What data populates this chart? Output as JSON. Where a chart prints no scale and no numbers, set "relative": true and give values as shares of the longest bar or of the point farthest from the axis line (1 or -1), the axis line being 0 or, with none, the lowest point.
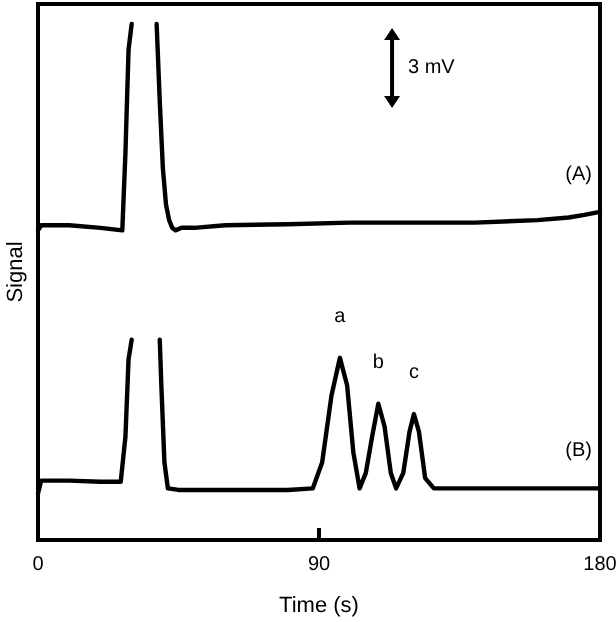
{
  "chart_data": {
    "type": "line",
    "relative": true,
    "xlabel": "Time (s)",
    "ylabel": "Signal",
    "xlim": [
      0,
      180
    ],
    "xticks": [
      0,
      90,
      180
    ],
    "grid": false,
    "marker": "none",
    "line_style": "solid",
    "series": [
      {
        "name": "(A)",
        "color": "#000000",
        "x": [
          0,
          1,
          10,
          20,
          27,
          28,
          29,
          30,
          34,
          38,
          39,
          40,
          41,
          42,
          43,
          44,
          46,
          50,
          60,
          80,
          100,
          120,
          140,
          160,
          170,
          175,
          180
        ],
        "values": [
          0.6,
          0.61,
          0.61,
          0.605,
          0.6,
          0.75,
          0.95,
          1,
          null,
          1,
          0.85,
          0.72,
          0.65,
          0.62,
          0.605,
          0.6,
          0.605,
          0.605,
          0.61,
          0.612,
          0.615,
          0.615,
          0.615,
          0.62,
          0.625,
          0.63,
          0.636
        ]
      },
      {
        "name": "(B)",
        "color": "#000000",
        "x": [
          0,
          1,
          10,
          20,
          26.5,
          28,
          29,
          30,
          35,
          39,
          39.5,
          40.5,
          41.6,
          45,
          60,
          80,
          88,
          91,
          94,
          96.7,
          99,
          101,
          103,
          105,
          107,
          109,
          111,
          113,
          114.7,
          117,
          119,
          120.4,
          122,
          124,
          126.8,
          140,
          160,
          180
        ],
        "values": [
          0.09,
          0.115,
          0.115,
          0.113,
          0.113,
          0.2,
          0.35,
          0.388,
          null,
          0.388,
          0.3,
          0.15,
          0.1,
          0.097,
          0.097,
          0.097,
          0.1,
          0.15,
          0.28,
          0.353,
          0.3,
          0.17,
          0.1,
          0.13,
          0.2,
          0.264,
          0.22,
          0.13,
          0.1,
          0.13,
          0.21,
          0.244,
          0.21,
          0.12,
          0.1,
          0.1,
          0.1,
          0.1
        ]
      }
    ],
    "annotations": [
      {
        "text": "a",
        "x": 96.7,
        "y": 0.353
      },
      {
        "text": "b",
        "x": 109,
        "y": 0.264
      },
      {
        "text": "c",
        "x": 120.4,
        "y": 0.244
      },
      "3 mV"
    ]
  }
}
